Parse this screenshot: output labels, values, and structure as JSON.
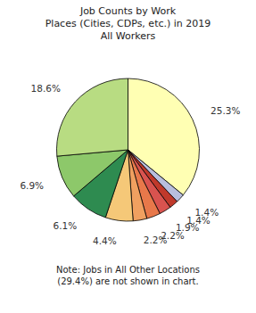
{
  "chart_data": {
    "type": "pie",
    "title": "Job Counts by Work\nPlaces (Cities, CDPs, etc.) in 2019\nAll Workers",
    "values": [
      25.3,
      1.4,
      1.4,
      1.9,
      2.2,
      2.2,
      4.4,
      6.1,
      6.9,
      18.6
    ],
    "value_labels": [
      "25.3%",
      "1.4%",
      "1.4%",
      "1.9%",
      "2.2%",
      "2.2%",
      "4.4%",
      "6.1%",
      "6.9%",
      "18.6%"
    ],
    "colors": [
      "#ffffb3",
      "#b8bedd",
      "#c0392b",
      "#d9534f",
      "#e8784a",
      "#f0a060",
      "#f5c878",
      "#2e8b50",
      "#8dc86a",
      "#b8dc82"
    ],
    "data_labels": true,
    "note": "Note: Jobs in All Other Locations\n(29.4%) are not shown in chart."
  }
}
